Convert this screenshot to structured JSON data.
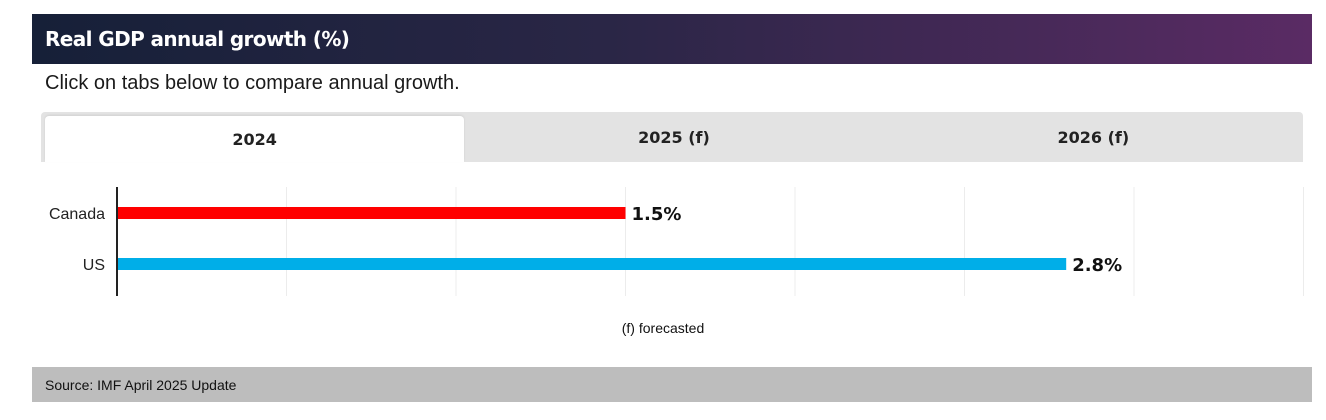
{
  "header": {
    "title": "Real GDP annual growth (%)"
  },
  "subtitle": "Click on tabs below to compare annual growth.",
  "tabs": [
    {
      "label": "2024",
      "active": true
    },
    {
      "label": "2025 (f)",
      "active": false
    },
    {
      "label": "2026 (f)",
      "active": false
    }
  ],
  "chart_data": {
    "type": "bar",
    "orientation": "horizontal",
    "categories": [
      "Canada",
      "US"
    ],
    "values": [
      1.5,
      2.8
    ],
    "value_labels": [
      "1.5%",
      "2.8%"
    ],
    "colors": [
      "#ff0000",
      "#00aee8"
    ],
    "xlim": [
      0,
      3.5
    ],
    "grid": true
  },
  "footnote": "(f) forecasted",
  "footer": {
    "source": "Source: IMF April 2025 Update"
  }
}
